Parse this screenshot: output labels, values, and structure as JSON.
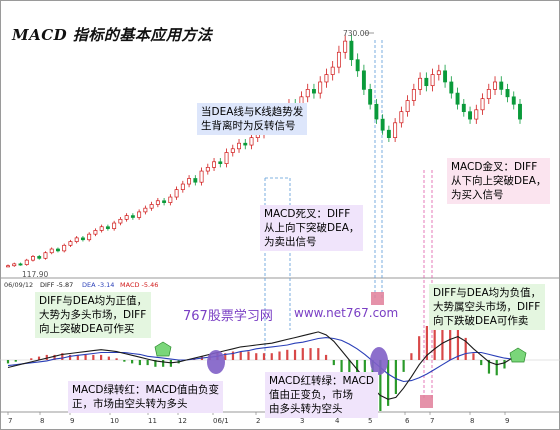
{
  "title": "MACD 指标的基本应用方法",
  "price_panel": {
    "high_label": "730.00",
    "low_label": "117.90"
  },
  "macd_panel": {
    "header": {
      "date": "06/09/12",
      "diff_label": "DIFF -5.87",
      "dea_label": "DEA -3.14",
      "macd_label": "MACD -5.46",
      "diff_color": "#1a1a1a",
      "dea_color": "#2a3fb8",
      "macd_label_color": "#d11a1a"
    }
  },
  "x_axis": {
    "labels": [
      "7",
      "8",
      "9",
      "10",
      "11",
      "12",
      "06/1",
      "2",
      "3",
      "4",
      "5",
      "6",
      "7",
      "8",
      "9"
    ]
  },
  "watermarks": {
    "site_cn": "767股票学习网",
    "site_url": "www.net767.com"
  },
  "callouts": {
    "divergence": "当DEA线与K线趋势发\n生背离时为反转信号",
    "death_cross": "MACD死叉：DIFF\n从上向下突破DEA，\n为卖出信号",
    "golden_cross": "MACD金叉：DIFF\n从下向上突破DEA，\n为买入信号",
    "bull_market": "DIFF与DEA均为正值，\n大势为多头市场，DIFF\n向上突破DEA可作买",
    "bear_market": "DIFF与DEA均为负值，\n大势属空头市场，DIFF\n向下跌破DEA可作卖",
    "green_to_red": "MACD绿转红：MACD值由负变\n正，市场由空头转为多头",
    "red_to_green": "MACD红转绿：MACD\n值由正变负，市场\n由多头转为空头"
  },
  "colors": {
    "up_candle": "#d01818",
    "down_candle": "#0a9a3a",
    "macd_pos": "#d84848",
    "macd_neg": "#2a9a2a",
    "marker_green": "#7ad67a",
    "marker_purple": "#7f5fc7",
    "marker_pink": "#e07f9a",
    "guide_blue": "#5a9ad8",
    "guide_pink": "#e05aa8"
  },
  "chart_data": [
    {
      "type": "candlestick",
      "title": "",
      "y_min_label": 117.9,
      "y_max_label": 730.0,
      "closes": [
        125,
        130,
        128,
        140,
        150,
        145,
        160,
        170,
        165,
        180,
        190,
        200,
        195,
        210,
        220,
        230,
        225,
        240,
        250,
        260,
        255,
        270,
        280,
        290,
        300,
        295,
        310,
        330,
        345,
        360,
        350,
        380,
        390,
        405,
        400,
        430,
        440,
        455,
        450,
        470,
        480,
        500,
        520,
        505,
        540,
        560,
        545,
        580,
        600,
        590,
        620,
        640,
        660,
        700,
        730,
        680,
        650,
        600,
        560,
        520,
        490,
        470,
        510,
        540,
        570,
        600,
        630,
        610,
        640,
        650,
        620,
        590,
        560,
        540,
        520,
        545,
        575,
        600,
        620,
        600,
        580,
        560,
        520
      ]
    },
    {
      "type": "bar+line",
      "title": "",
      "series": [
        {
          "name": "DIFF",
          "values": [
            -8,
            -6,
            -4,
            -2,
            0,
            2,
            4,
            6,
            7,
            8,
            9,
            10,
            11,
            10,
            9,
            7,
            5,
            3,
            1,
            -1,
            -2,
            -3,
            -2,
            0,
            2,
            4,
            6,
            8,
            10,
            12,
            14,
            15,
            16,
            17,
            18,
            20,
            22,
            24,
            26,
            28,
            30,
            27,
            20,
            10,
            0,
            -10,
            -20,
            -30,
            -38,
            -42,
            -40,
            -30,
            -18,
            -5,
            5,
            12,
            18,
            22,
            25,
            20,
            12,
            5,
            -2,
            -5,
            -3,
            2,
            6
          ]
        },
        {
          "name": "DEA",
          "values": [
            -6,
            -5,
            -4,
            -3,
            -2,
            -1,
            1,
            2,
            4,
            5,
            6,
            7,
            8,
            8,
            8,
            8,
            7,
            6,
            4,
            3,
            2,
            1,
            0,
            0,
            1,
            2,
            3,
            4,
            6,
            7,
            9,
            10,
            12,
            13,
            14,
            15,
            16,
            18,
            19,
            21,
            23,
            24,
            23,
            21,
            17,
            12,
            6,
            -1,
            -8,
            -15,
            -20,
            -23,
            -22,
            -19,
            -15,
            -10,
            -5,
            0,
            4,
            7,
            8,
            8,
            6,
            4,
            2,
            1,
            2
          ]
        },
        {
          "name": "MACD",
          "values": [
            -4,
            -2,
            0,
            2,
            4,
            6,
            6,
            8,
            6,
            6,
            6,
            6,
            6,
            4,
            2,
            -2,
            -4,
            -6,
            -6,
            -8,
            -8,
            -8,
            -4,
            0,
            2,
            4,
            6,
            8,
            8,
            10,
            10,
            10,
            8,
            8,
            8,
            10,
            12,
            12,
            14,
            14,
            14,
            6,
            -6,
            -22,
            -34,
            -44,
            -52,
            -58,
            -60,
            -54,
            -40,
            -14,
            8,
            28,
            40,
            44,
            46,
            44,
            42,
            26,
            8,
            -6,
            -16,
            -18,
            -10,
            2,
            8
          ]
        }
      ]
    }
  ]
}
